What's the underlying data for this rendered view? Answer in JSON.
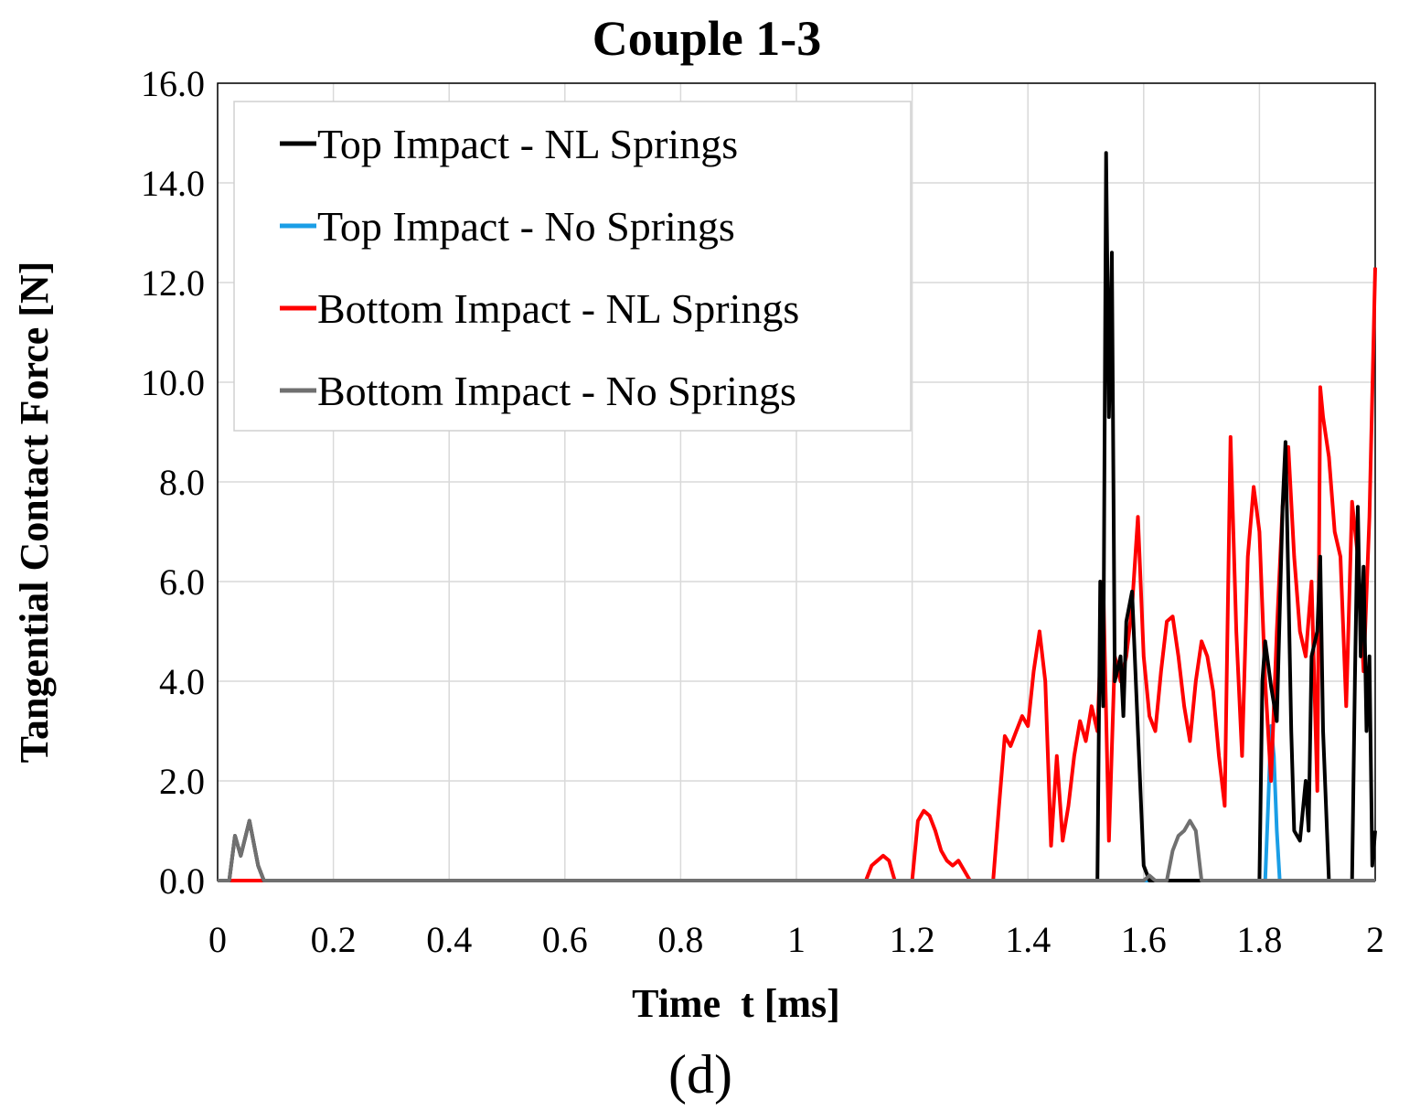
{
  "caption": "(d)",
  "chart_data": {
    "type": "line",
    "title": "Couple 1-3",
    "xlabel": "Time  t [ms]",
    "ylabel": "Tangential Contact Force [N]",
    "xlim": [
      0,
      2
    ],
    "ylim": [
      0,
      16
    ],
    "x_ticks": [
      "0",
      "0.2",
      "0.4",
      "0.6",
      "0.8",
      "1",
      "1.2",
      "1.4",
      "1.6",
      "1.8",
      "2"
    ],
    "y_ticks": [
      "0.0",
      "2.0",
      "4.0",
      "6.0",
      "8.0",
      "10.0",
      "12.0",
      "14.0",
      "16.0"
    ],
    "grid": true,
    "legend_position": "top-left",
    "series": [
      {
        "name": "Top Impact - NL Springs",
        "color": "#000000",
        "points": [
          [
            0,
            0
          ],
          [
            0.02,
            0
          ],
          [
            0.03,
            0.9
          ],
          [
            0.04,
            0.5
          ],
          [
            0.055,
            1.2
          ],
          [
            0.07,
            0.3
          ],
          [
            0.08,
            0
          ],
          [
            1.52,
            0
          ],
          [
            1.525,
            6.0
          ],
          [
            1.53,
            3.5
          ],
          [
            1.535,
            14.6
          ],
          [
            1.54,
            9.3
          ],
          [
            1.545,
            12.6
          ],
          [
            1.55,
            4.0
          ],
          [
            1.56,
            4.5
          ],
          [
            1.565,
            3.3
          ],
          [
            1.57,
            5.2
          ],
          [
            1.58,
            5.8
          ],
          [
            1.59,
            3.0
          ],
          [
            1.6,
            0.3
          ],
          [
            1.61,
            0
          ],
          [
            1.8,
            0
          ],
          [
            1.805,
            4.0
          ],
          [
            1.81,
            4.8
          ],
          [
            1.82,
            3.9
          ],
          [
            1.83,
            3.2
          ],
          [
            1.84,
            7.5
          ],
          [
            1.845,
            8.8
          ],
          [
            1.85,
            6.0
          ],
          [
            1.855,
            3.0
          ],
          [
            1.86,
            1.0
          ],
          [
            1.87,
            0.8
          ],
          [
            1.88,
            2.0
          ],
          [
            1.885,
            1.0
          ],
          [
            1.89,
            4.5
          ],
          [
            1.9,
            5.0
          ],
          [
            1.905,
            6.5
          ],
          [
            1.91,
            3.0
          ],
          [
            1.92,
            0
          ],
          [
            1.96,
            0
          ],
          [
            1.965,
            4.0
          ],
          [
            1.97,
            7.5
          ],
          [
            1.975,
            4.5
          ],
          [
            1.98,
            6.3
          ],
          [
            1.985,
            3.0
          ],
          [
            1.99,
            4.5
          ],
          [
            1.995,
            0.3
          ],
          [
            2.0,
            1.0
          ]
        ]
      },
      {
        "name": "Top Impact - No Springs",
        "color": "#1a9ee6",
        "points": [
          [
            0,
            0
          ],
          [
            1.81,
            0
          ],
          [
            1.815,
            1.5
          ],
          [
            1.82,
            3.1
          ],
          [
            1.825,
            2.5
          ],
          [
            1.83,
            1.0
          ],
          [
            1.835,
            0
          ],
          [
            2.0,
            0
          ]
        ]
      },
      {
        "name": "Bottom Impact - NL Springs",
        "color": "#ff0000",
        "points": [
          [
            0,
            0
          ],
          [
            1.12,
            0
          ],
          [
            1.13,
            0.3
          ],
          [
            1.14,
            0.4
          ],
          [
            1.15,
            0.5
          ],
          [
            1.16,
            0.4
          ],
          [
            1.17,
            0
          ],
          [
            1.2,
            0
          ],
          [
            1.21,
            1.2
          ],
          [
            1.22,
            1.4
          ],
          [
            1.23,
            1.3
          ],
          [
            1.24,
            1.0
          ],
          [
            1.25,
            0.6
          ],
          [
            1.26,
            0.4
          ],
          [
            1.27,
            0.3
          ],
          [
            1.28,
            0.4
          ],
          [
            1.29,
            0.2
          ],
          [
            1.3,
            0
          ],
          [
            1.34,
            0
          ],
          [
            1.35,
            1.5
          ],
          [
            1.36,
            2.9
          ],
          [
            1.37,
            2.7
          ],
          [
            1.38,
            3.0
          ],
          [
            1.39,
            3.3
          ],
          [
            1.4,
            3.1
          ],
          [
            1.41,
            4.2
          ],
          [
            1.42,
            5.0
          ],
          [
            1.43,
            4.0
          ],
          [
            1.44,
            0.7
          ],
          [
            1.45,
            2.5
          ],
          [
            1.46,
            0.8
          ],
          [
            1.47,
            1.5
          ],
          [
            1.48,
            2.5
          ],
          [
            1.49,
            3.2
          ],
          [
            1.5,
            2.8
          ],
          [
            1.51,
            3.5
          ],
          [
            1.52,
            3.0
          ],
          [
            1.53,
            6.0
          ],
          [
            1.54,
            0.8
          ],
          [
            1.55,
            4.5
          ],
          [
            1.56,
            4.0
          ],
          [
            1.57,
            4.5
          ],
          [
            1.58,
            5.5
          ],
          [
            1.59,
            7.3
          ],
          [
            1.6,
            4.5
          ],
          [
            1.61,
            3.3
          ],
          [
            1.62,
            3.0
          ],
          [
            1.63,
            4.2
          ],
          [
            1.64,
            5.2
          ],
          [
            1.65,
            5.3
          ],
          [
            1.66,
            4.5
          ],
          [
            1.67,
            3.5
          ],
          [
            1.68,
            2.8
          ],
          [
            1.69,
            4.0
          ],
          [
            1.7,
            4.8
          ],
          [
            1.71,
            4.5
          ],
          [
            1.72,
            3.8
          ],
          [
            1.73,
            2.5
          ],
          [
            1.74,
            1.5
          ],
          [
            1.75,
            8.9
          ],
          [
            1.76,
            5.0
          ],
          [
            1.77,
            2.5
          ],
          [
            1.78,
            6.5
          ],
          [
            1.79,
            7.9
          ],
          [
            1.8,
            7.0
          ],
          [
            1.81,
            4.0
          ],
          [
            1.82,
            2.0
          ],
          [
            1.83,
            5.0
          ],
          [
            1.84,
            7.5
          ],
          [
            1.85,
            8.7
          ],
          [
            1.86,
            6.5
          ],
          [
            1.87,
            5.0
          ],
          [
            1.88,
            4.5
          ],
          [
            1.89,
            6.0
          ],
          [
            1.9,
            1.8
          ],
          [
            1.905,
            9.9
          ],
          [
            1.91,
            9.3
          ],
          [
            1.92,
            8.5
          ],
          [
            1.93,
            7.0
          ],
          [
            1.94,
            6.5
          ],
          [
            1.95,
            3.5
          ],
          [
            1.96,
            7.6
          ],
          [
            1.97,
            6.5
          ],
          [
            1.98,
            4.2
          ],
          [
            1.99,
            7.3
          ],
          [
            2.0,
            12.3
          ]
        ]
      },
      {
        "name": "Bottom Impact - No Springs",
        "color": "#707070",
        "points": [
          [
            0,
            0
          ],
          [
            0.02,
            0
          ],
          [
            0.03,
            0.9
          ],
          [
            0.04,
            0.5
          ],
          [
            0.055,
            1.2
          ],
          [
            0.07,
            0.3
          ],
          [
            0.08,
            0
          ],
          [
            1.6,
            0
          ],
          [
            1.61,
            0.1
          ],
          [
            1.62,
            0
          ],
          [
            1.64,
            0
          ],
          [
            1.65,
            0.6
          ],
          [
            1.66,
            0.9
          ],
          [
            1.67,
            1.0
          ],
          [
            1.68,
            1.2
          ],
          [
            1.69,
            1.0
          ],
          [
            1.7,
            0
          ],
          [
            2.0,
            0
          ]
        ]
      }
    ]
  }
}
